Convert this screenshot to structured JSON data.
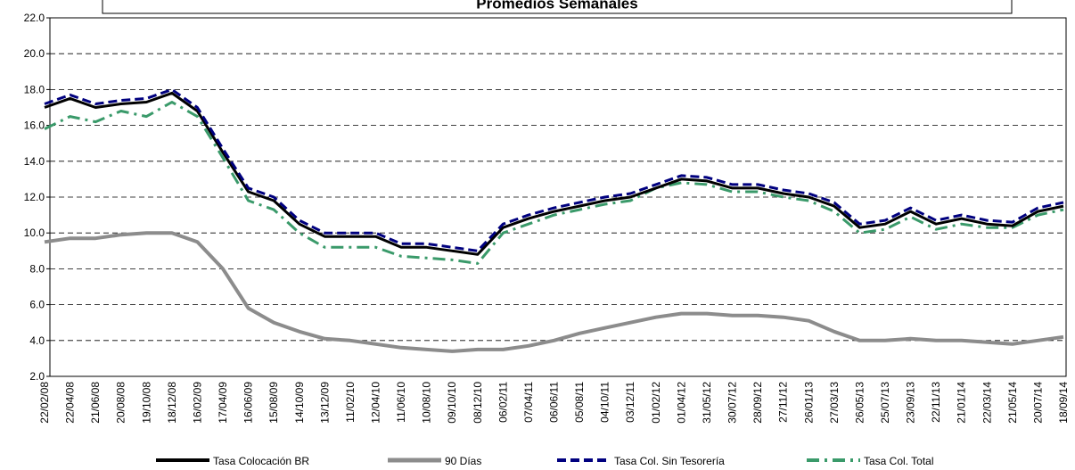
{
  "chart_data": {
    "type": "line",
    "title": "Promedios Semanales",
    "categories": [
      "22/02/08",
      "22/04/08",
      "21/06/08",
      "20/08/08",
      "19/10/08",
      "18/12/08",
      "16/02/09",
      "17/04/09",
      "16/06/09",
      "15/08/09",
      "14/10/09",
      "13/12/09",
      "11/02/10",
      "12/04/10",
      "11/06/10",
      "10/08/10",
      "09/10/10",
      "08/12/10",
      "06/02/11",
      "07/04/11",
      "06/06/11",
      "05/08/11",
      "04/10/11",
      "03/12/11",
      "01/02/12",
      "01/04/12",
      "31/05/12",
      "30/07/12",
      "28/09/12",
      "27/11/12",
      "26/01/13",
      "27/03/13",
      "26/05/13",
      "25/07/13",
      "23/09/13",
      "22/11/13",
      "21/01/14",
      "22/03/14",
      "21/05/14",
      "20/07/14",
      "18/09/14"
    ],
    "series": [
      {
        "name": "Tasa Colocación BR",
        "color": "#000000",
        "dash": "solid",
        "width": 3,
        "values": [
          17.0,
          17.5,
          17.0,
          17.2,
          17.3,
          17.8,
          16.8,
          14.5,
          12.3,
          11.8,
          10.5,
          9.8,
          9.8,
          9.8,
          9.2,
          9.2,
          9.0,
          8.8,
          10.3,
          10.8,
          11.2,
          11.5,
          11.8,
          12.0,
          12.5,
          13.0,
          12.9,
          12.5,
          12.5,
          12.2,
          12.0,
          11.5,
          10.3,
          10.5,
          11.2,
          10.5,
          10.8,
          10.5,
          10.4,
          11.2,
          11.5
        ]
      },
      {
        "name": "90 Días",
        "color": "#8c8c8c",
        "dash": "solid",
        "width": 4,
        "values": [
          9.5,
          9.7,
          9.7,
          9.9,
          10.0,
          10.0,
          9.5,
          8.0,
          5.8,
          5.0,
          4.5,
          4.1,
          4.0,
          3.8,
          3.6,
          3.5,
          3.4,
          3.5,
          3.5,
          3.7,
          4.0,
          4.4,
          4.7,
          5.0,
          5.3,
          5.5,
          5.5,
          5.4,
          5.4,
          5.3,
          5.1,
          4.5,
          4.0,
          4.0,
          4.1,
          4.0,
          4.0,
          3.9,
          3.8,
          4.0,
          4.2
        ]
      },
      {
        "name": "Tasa Col. Sin Tesorería",
        "color": "#00007f",
        "dash": "dashed",
        "width": 3,
        "values": [
          17.2,
          17.7,
          17.2,
          17.4,
          17.5,
          18.0,
          17.0,
          14.7,
          12.5,
          12.0,
          10.7,
          10.0,
          10.0,
          10.0,
          9.4,
          9.4,
          9.2,
          9.0,
          10.5,
          11.0,
          11.4,
          11.7,
          12.0,
          12.2,
          12.7,
          13.2,
          13.1,
          12.7,
          12.7,
          12.4,
          12.2,
          11.7,
          10.5,
          10.7,
          11.4,
          10.7,
          11.0,
          10.7,
          10.6,
          11.4,
          11.7
        ]
      },
      {
        "name": "Tasa Col. Total",
        "color": "#3a9a6a",
        "dash": "dashdot",
        "width": 3,
        "values": [
          15.8,
          16.5,
          16.2,
          16.8,
          16.5,
          17.3,
          16.5,
          14.2,
          11.8,
          11.3,
          10.0,
          9.2,
          9.2,
          9.2,
          8.7,
          8.6,
          8.5,
          8.3,
          10.0,
          10.5,
          11.0,
          11.3,
          11.6,
          11.8,
          12.5,
          12.8,
          12.7,
          12.3,
          12.3,
          12.0,
          11.8,
          11.2,
          10.0,
          10.2,
          10.9,
          10.2,
          10.5,
          10.3,
          10.3,
          11.0,
          11.3
        ]
      }
    ],
    "ylim": [
      2,
      22
    ],
    "yticks": [
      {
        "value": 2,
        "label": "2.0"
      },
      {
        "value": 4,
        "label": "4.0"
      },
      {
        "value": 6,
        "label": "6.0"
      },
      {
        "value": 8,
        "label": "8.0"
      },
      {
        "value": 10,
        "label": "10.0"
      },
      {
        "value": 12,
        "label": "12.0"
      },
      {
        "value": 14,
        "label": "14.0"
      },
      {
        "value": 16,
        "label": "16.0"
      },
      {
        "value": 18,
        "label": "18.0"
      },
      {
        "value": 20,
        "label": "20.0"
      },
      {
        "value": 22,
        "label": "22.0"
      }
    ],
    "grid": true,
    "legend": "bottom"
  }
}
